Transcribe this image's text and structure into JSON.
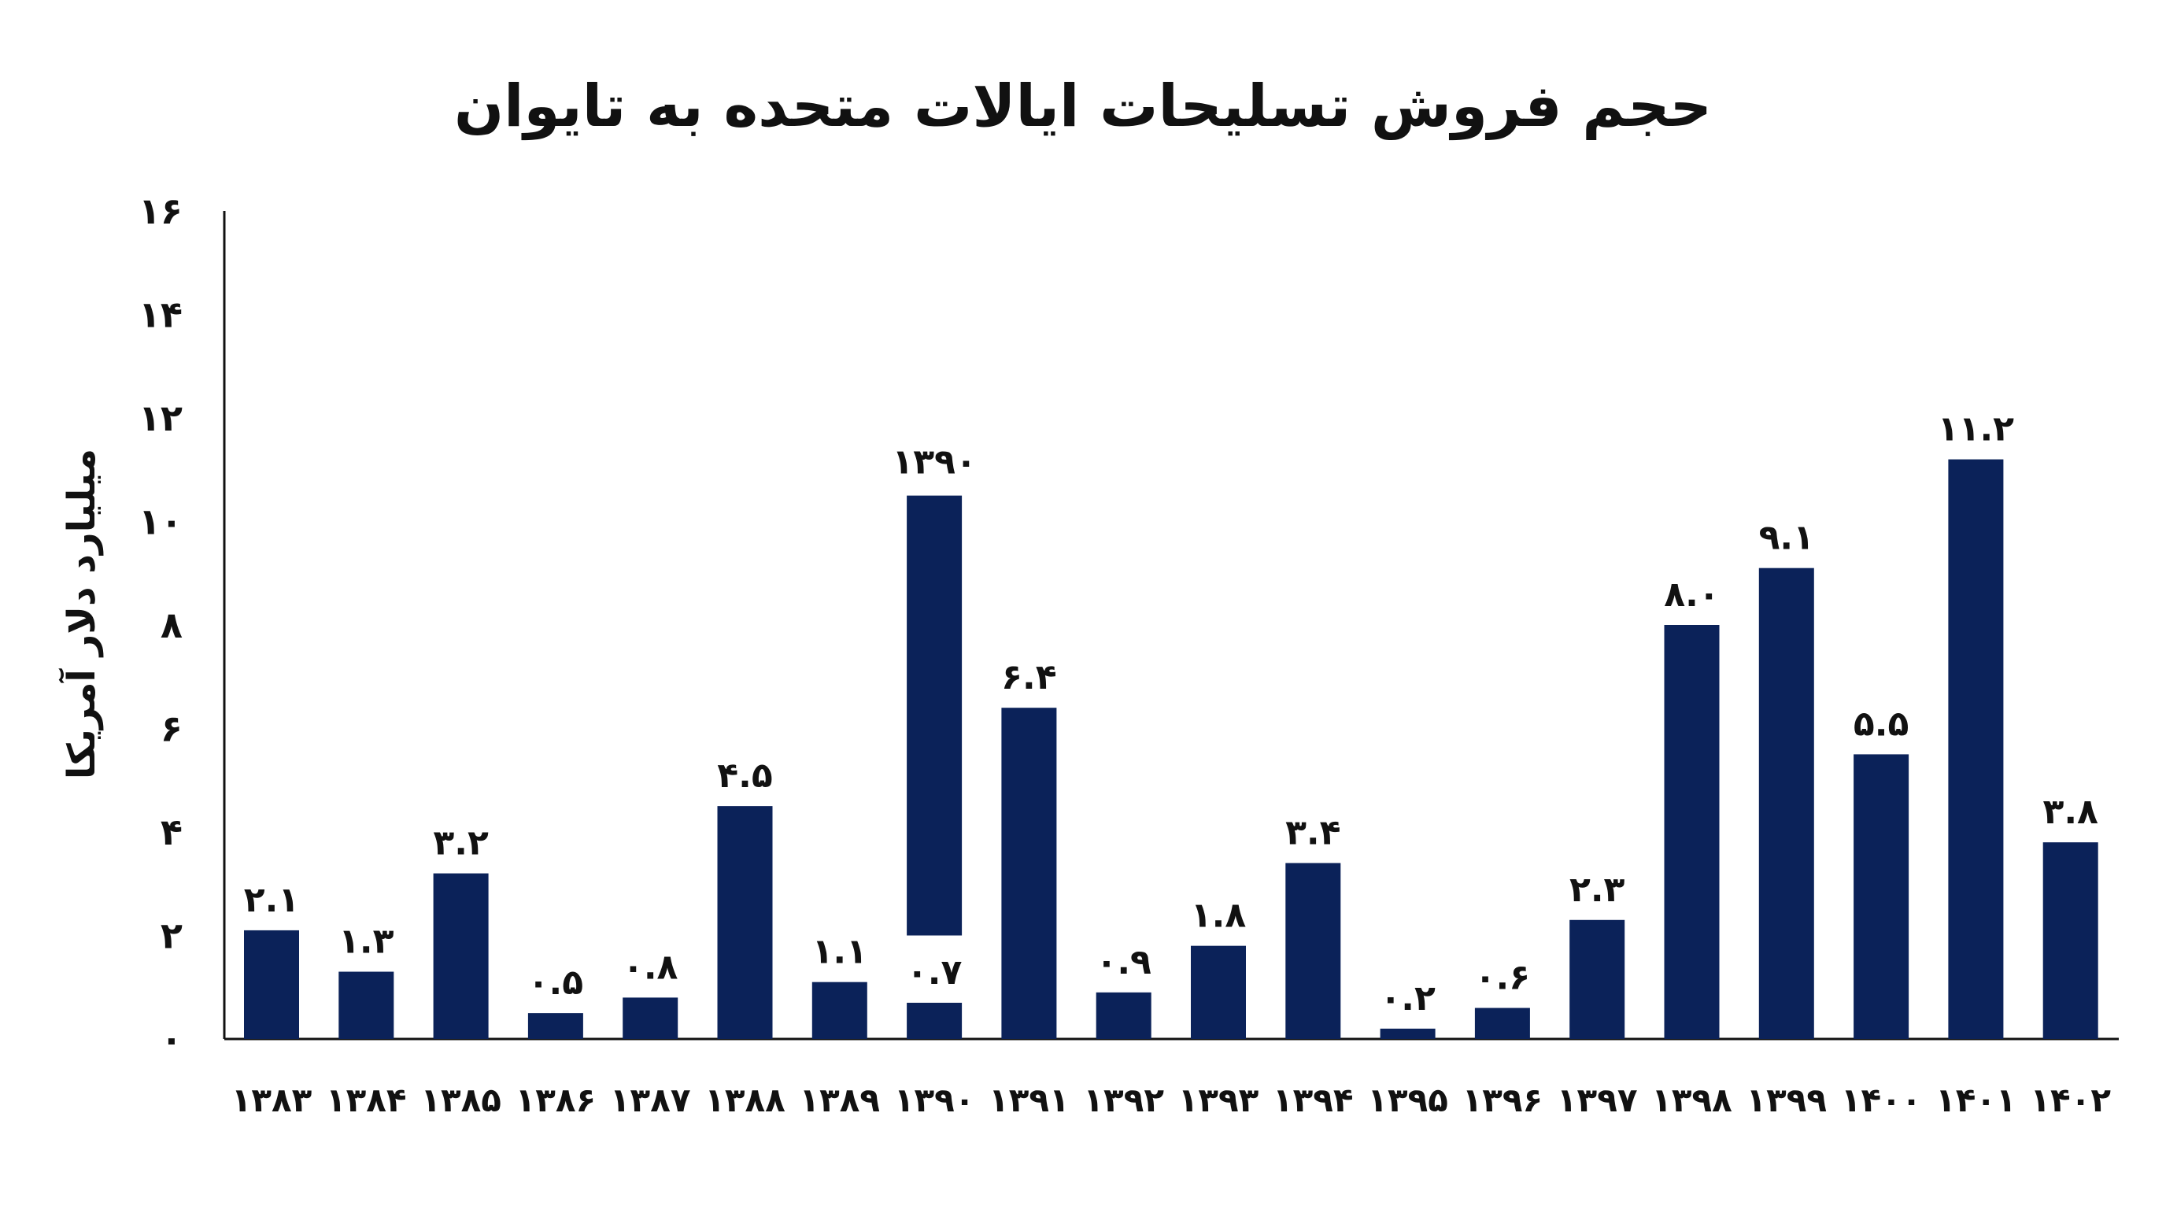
{
  "chart_data": {
    "type": "bar",
    "title": "حجم فروش تسلیحات ایالات متحده به تایوان",
    "ylabel": "میلیارد دلار آمریکا",
    "xlabel": "",
    "ylim": [
      0,
      16
    ],
    "yticks": [
      "۰",
      "۲",
      "۴",
      "۶",
      "۸",
      "۱۰",
      "۱۲",
      "۱۴",
      "۱۶"
    ],
    "ytick_values": [
      0,
      2,
      4,
      6,
      8,
      10,
      12,
      14,
      16
    ],
    "categories": [
      "۱۳۸۳",
      "۱۳۸۴",
      "۱۳۸۵",
      "۱۳۸۶",
      "۱۳۸۷",
      "۱۳۸۸",
      "۱۳۸۹",
      "۱۳۹۰",
      "۱۳۹۱",
      "۱۳۹۲",
      "۱۳۹۳",
      "۱۳۹۴",
      "۱۳۹۵",
      "۱۳۹۶",
      "۱۳۹۷",
      "۱۳۹۸",
      "۱۳۹۹",
      "۱۴۰۰",
      "۱۴۰۱",
      "۱۴۰۲"
    ],
    "values": [
      2.1,
      1.3,
      3.2,
      0.5,
      0.8,
      4.5,
      1.1,
      0.7,
      6.4,
      0.9,
      1.8,
      3.4,
      0.2,
      0.6,
      2.3,
      8.0,
      9.1,
      5.5,
      11.2,
      3.8
    ],
    "value_labels": [
      "۲.۱",
      "۱.۳",
      "۳.۲",
      "۰.۵",
      "۰.۸",
      "۴.۵",
      "۱.۱",
      "۰.۷",
      "۶.۴",
      "۰.۹",
      "۱.۸",
      "۳.۴",
      "۰.۲",
      "۰.۶",
      "۲.۳",
      "۸.۰",
      "۹.۱",
      "۵.۵",
      "۱۱.۲",
      "۳.۸"
    ],
    "floating_segment": {
      "category": "۱۳۹۰",
      "from": 2.0,
      "to": 10.5,
      "label": "۱۳۹۰"
    },
    "bar_color": "#0b2259",
    "grid": false,
    "legend": "none"
  }
}
